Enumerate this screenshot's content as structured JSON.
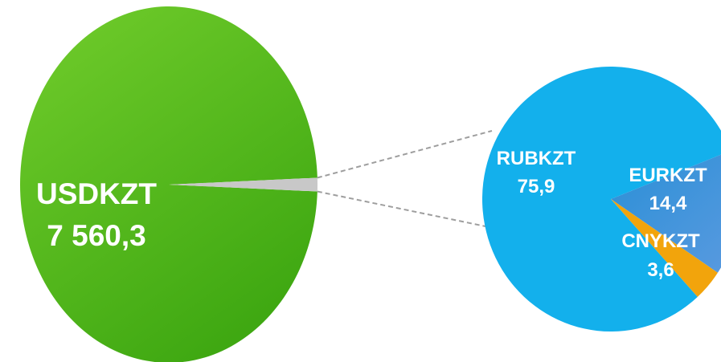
{
  "chart_data": [
    {
      "type": "pie",
      "slices": [
        {
          "label": "USDKZT",
          "value_text": "7 560,3",
          "value": 7560.3,
          "color": "#4cb81e"
        },
        {
          "label": "",
          "value_text": "",
          "value": 93.9,
          "color": "#c8c8c8"
        }
      ]
    },
    {
      "type": "pie",
      "slices": [
        {
          "label": "RUBKZT",
          "value_text": "75,9",
          "value": 75.9,
          "color": "#13b0ec"
        },
        {
          "label": "EURKZT",
          "value_text": "14,4",
          "value": 14.4,
          "color": "#3a78c8"
        },
        {
          "label": "CNYKZT",
          "value_text": "3,6",
          "value": 3.6,
          "color": "#f2a40c"
        }
      ]
    }
  ],
  "connector_color": "#9e9e9e"
}
